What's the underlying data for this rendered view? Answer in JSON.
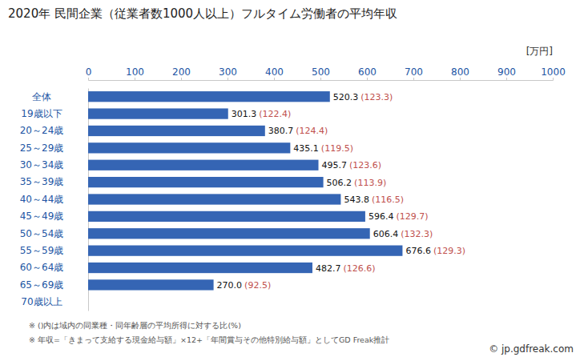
{
  "chart_data": {
    "type": "bar",
    "orientation": "horizontal",
    "title": "2020年 民間企業（従業者数1000人以上）フルタイム労働者の平均年収",
    "x_label": "[万円]",
    "categories": [
      "全体",
      "19歳以下",
      "20～24歳",
      "25～29歳",
      "30～34歳",
      "35～39歳",
      "40～44歳",
      "45～49歳",
      "50～54歳",
      "55～59歳",
      "60～64歳",
      "65～69歳",
      "70歳以上"
    ],
    "values": [
      520.3,
      301.3,
      380.7,
      435.1,
      495.7,
      506.2,
      543.8,
      596.4,
      606.4,
      676.6,
      482.7,
      270.0,
      null
    ],
    "value_labels": [
      "520.3",
      "301.3",
      "380.7",
      "435.1",
      "495.7",
      "506.2",
      "543.8",
      "596.4",
      "606.4",
      "676.6",
      "482.7",
      "270.0",
      null
    ],
    "ratio_labels": [
      "(123.3)",
      "(122.4)",
      "(124.4)",
      "(119.5)",
      "(123.6)",
      "(113.9)",
      "(116.5)",
      "(129.7)",
      "(132.3)",
      "(129.3)",
      "(126.6)",
      "(92.5)",
      null
    ],
    "color": "#3565b4",
    "xlim": [
      0,
      1000
    ],
    "xticks": [
      0,
      100,
      200,
      300,
      400,
      500,
      600,
      700,
      800,
      900,
      1000
    ],
    "grid": false,
    "data_labels": true,
    "notes": [
      "※ ()内は域内の同業種・同年齢層の平均所得に対する比(%)",
      "※ 年収=「きまって支給する現金給与額」×12+「年間賞与その他特別給与額」としてGD Freak推計"
    ],
    "source": "© jp.gdfreak.com"
  }
}
